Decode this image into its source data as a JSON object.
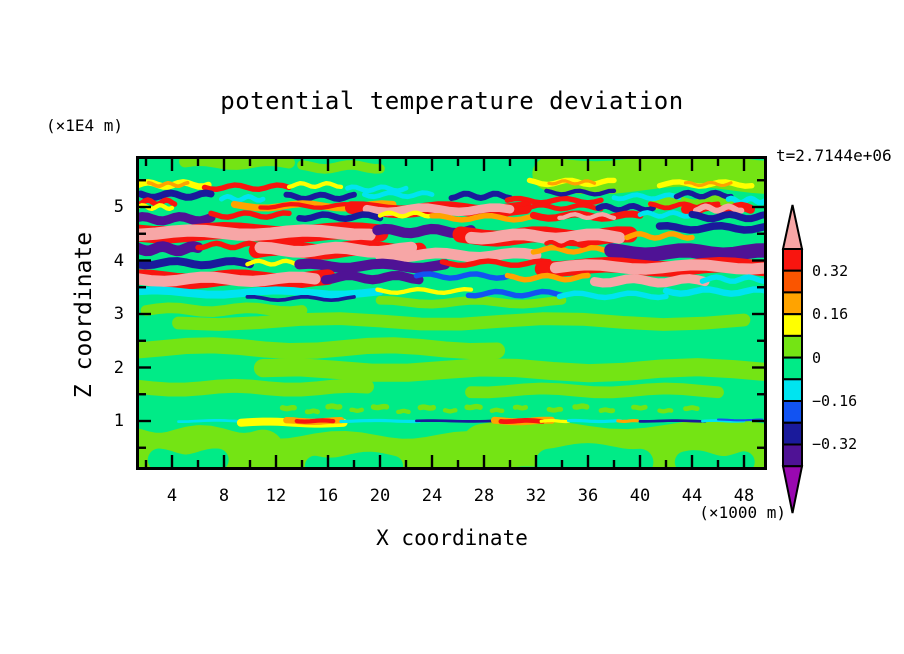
{
  "title": "potential temperature deviation",
  "time_label": "t=2.7144e+06",
  "axes": {
    "x": {
      "label": "X coordinate",
      "unit": "(×1000 m)",
      "major_ticks": [
        4,
        8,
        12,
        16,
        20,
        24,
        28,
        32,
        36,
        40,
        44,
        48
      ],
      "minor_ticks": [
        2,
        6,
        10,
        14,
        18,
        22,
        26,
        30,
        34,
        38,
        42,
        46
      ],
      "range": [
        1.2,
        49.8
      ]
    },
    "z": {
      "label": "Z coordinate",
      "unit": "(×1E4 m)",
      "major_ticks": [
        1,
        2,
        3,
        4,
        5
      ],
      "minor_ticks": [
        0.5,
        1.5,
        2.5,
        3.5,
        4.5,
        5.5
      ],
      "range": [
        0.08,
        5.95
      ]
    }
  },
  "colorbar": {
    "bands_top_to_bottom": [
      {
        "color": "rd",
        "min": 0.32,
        "max": 0.4
      },
      {
        "color": "or",
        "min": 0.24,
        "max": 0.32
      },
      {
        "color": "og",
        "min": 0.16,
        "max": 0.24
      },
      {
        "color": "yl",
        "min": 0.08,
        "max": 0.16
      },
      {
        "color": "ch",
        "min": 0,
        "max": 0.08
      },
      {
        "color": "sg",
        "min": -0.08,
        "max": 0
      },
      {
        "color": "cy",
        "min": -0.16,
        "max": -0.08
      },
      {
        "color": "bl",
        "min": -0.24,
        "max": -0.16
      },
      {
        "color": "nv",
        "min": -0.32,
        "max": -0.24
      },
      {
        "color": "ig",
        "min": -0.4,
        "max": -0.32
      }
    ],
    "over_arrow_color": "pk",
    "under_arrow_color": "pu",
    "labels": [
      {
        "text": "0.32",
        "at": 0.32
      },
      {
        "text": "0.16",
        "at": 0.16
      },
      {
        "text": "0",
        "at": 0
      },
      {
        "text": "−0.16",
        "at": -0.16
      },
      {
        "text": "−0.32",
        "at": -0.32
      }
    ]
  },
  "chart_data": {
    "type": "heatmap",
    "subtype": "filled_contour_2d",
    "title": "potential temperature deviation",
    "xlabel": "X coordinate (×1000 m)",
    "ylabel": "Z coordinate (×1E4 m)",
    "annotation": "t=2.7144e+06",
    "xlim": [
      1.2,
      49.8
    ],
    "ylim": [
      0.08,
      5.95
    ],
    "contour_level_edges": [
      -0.4,
      -0.32,
      -0.24,
      -0.16,
      -0.08,
      0,
      0.08,
      0.16,
      0.24,
      0.32,
      0.4
    ],
    "palette": {
      "pk": "#F7A6A6",
      "rd": "#F8150F",
      "or": "#FA5500",
      "og": "#FFA300",
      "yl": "#FFFF00",
      "ch": "#74E414",
      "sg": "#00EB87",
      "cy": "#00E4F0",
      "bl": "#1253F2",
      "nv": "#1A1A9B",
      "ig": "#4F1295",
      "pu": "#9908B0"
    },
    "background_value_color": "sg",
    "description": "Vertical x-z cross-section of potential temperature deviation. Strongly striated turbulent wave-breaking layer between z=3.3 and z=5.5 (pink/red/purple/blue streaks, |dev|>0.4 in places); near-zero green field elsewhere; thin perturbed interface line at z=1.0 with small warm (red/orange) and cold (blue/navy) pockets and a speckled mixing band just above it.",
    "field": {
      "coords": "x in axis units (x1000 m), z in axis units (x1E4 m); stripe = [x0, x1, z_center, thickness_z, colorKey, optional_wave_amp_px, optional_wave_cycles]",
      "stripes": [
        [
          33,
          50,
          5.62,
          0.62,
          "ch",
          4,
          1.2
        ],
        [
          41,
          47.5,
          5.08,
          0.2,
          "ch"
        ],
        [
          5,
          13,
          5.84,
          0.22,
          "ch",
          2,
          1.5
        ],
        [
          14,
          20,
          5.75,
          0.18,
          "ch",
          2,
          1.5
        ],
        [
          4.5,
          48,
          2.86,
          0.24,
          "ch",
          3,
          2.5
        ],
        [
          1.2,
          29,
          2.36,
          0.3,
          "ch",
          3,
          2
        ],
        [
          11,
          50,
          1.95,
          0.34,
          "ch",
          3,
          2.5
        ],
        [
          1.2,
          19,
          1.62,
          0.26,
          "ch",
          2,
          2
        ],
        [
          27,
          46,
          1.57,
          0.22,
          "ch",
          2,
          2
        ],
        [
          2,
          14,
          3.08,
          0.2,
          "ch",
          2,
          2
        ],
        [
          20,
          34,
          3.22,
          0.16,
          "ch",
          2,
          2
        ],
        [
          1.2,
          11,
          0.45,
          0.8,
          "ch",
          4,
          1.5
        ],
        [
          12,
          27,
          0.4,
          0.68,
          "ch",
          4,
          1.5
        ],
        [
          28,
          50,
          0.5,
          0.88,
          "ch",
          5,
          1.5
        ],
        [
          3,
          7.5,
          0.22,
          0.42,
          "sg",
          3,
          1
        ],
        [
          15,
          21,
          0.18,
          0.38,
          "sg",
          3,
          1
        ],
        [
          33,
          40,
          0.28,
          0.5,
          "sg",
          3,
          1
        ],
        [
          43.5,
          48,
          0.2,
          0.4,
          "sg",
          3,
          1
        ],
        [
          12.5,
          13.4,
          1.24,
          0.1,
          "ch",
          0.5,
          1
        ],
        [
          14.4,
          15.2,
          1.18,
          0.09,
          "ch",
          0.5,
          1
        ],
        [
          16,
          16.9,
          1.27,
          0.1,
          "ch",
          0.5,
          1
        ],
        [
          17.8,
          18.6,
          1.2,
          0.08,
          "ch",
          0.5,
          1
        ],
        [
          19.5,
          20.5,
          1.26,
          0.1,
          "ch",
          0.5,
          1
        ],
        [
          21.4,
          22.2,
          1.18,
          0.08,
          "ch",
          0.5,
          1
        ],
        [
          23.1,
          24.1,
          1.25,
          0.1,
          "ch",
          0.5,
          1
        ],
        [
          25,
          25.8,
          1.19,
          0.08,
          "ch",
          0.5,
          1
        ],
        [
          26.7,
          27.7,
          1.26,
          0.1,
          "ch",
          0.5,
          1
        ],
        [
          28.6,
          29.4,
          1.2,
          0.08,
          "ch",
          0.5,
          1
        ],
        [
          30.4,
          31.2,
          1.25,
          0.09,
          "ch",
          0.5,
          1
        ],
        [
          33,
          33.9,
          1.21,
          0.09,
          "ch",
          0.5,
          1
        ],
        [
          35,
          35.9,
          1.27,
          0.1,
          "ch",
          0.5,
          1
        ],
        [
          37,
          37.9,
          1.2,
          0.09,
          "ch",
          0.5,
          1
        ],
        [
          39.5,
          40.4,
          1.25,
          0.09,
          "ch",
          0.5,
          1
        ],
        [
          41.5,
          42.4,
          1.19,
          0.08,
          "ch",
          0.5,
          1
        ],
        [
          43.5,
          44.4,
          1.24,
          0.09,
          "ch",
          0.5,
          1
        ],
        [
          1.4,
          6.8,
          5.42,
          0.12,
          "yl"
        ],
        [
          2.2,
          5.2,
          5.42,
          0.07,
          "og"
        ],
        [
          6.5,
          13,
          5.37,
          0.1,
          "rd"
        ],
        [
          13,
          17,
          5.41,
          0.08,
          "yl"
        ],
        [
          17.5,
          22,
          5.34,
          0.09,
          "cy"
        ],
        [
          31.5,
          38,
          5.46,
          0.1,
          "yl"
        ],
        [
          33,
          36.5,
          5.46,
          0.06,
          "og"
        ],
        [
          41.5,
          48.6,
          5.43,
          0.1,
          "yl"
        ],
        [
          43.5,
          47,
          5.43,
          0.06,
          "og"
        ],
        [
          1.6,
          7,
          5.22,
          0.13,
          "nv"
        ],
        [
          1.3,
          4.2,
          5.09,
          0.1,
          "rd"
        ],
        [
          7.8,
          11,
          5.16,
          0.09,
          "cy"
        ],
        [
          12.8,
          18,
          5.19,
          0.11,
          "nv"
        ],
        [
          18.8,
          24,
          5.23,
          0.09,
          "cy"
        ],
        [
          25.5,
          30,
          5.21,
          0.11,
          "nv"
        ],
        [
          29.8,
          37,
          5.12,
          0.1,
          "rd"
        ],
        [
          32.8,
          38,
          5.27,
          0.08,
          "nv"
        ],
        [
          38,
          43,
          5.19,
          0.09,
          "cy"
        ],
        [
          42.8,
          47,
          5.23,
          0.1,
          "nv"
        ],
        [
          46.8,
          49.8,
          5.12,
          0.1,
          "cy"
        ],
        [
          8.8,
          21,
          5.02,
          0.13,
          "og"
        ],
        [
          10.8,
          19,
          5.02,
          0.08,
          "rd"
        ],
        [
          1.3,
          4,
          5.0,
          0.08,
          "yl"
        ],
        [
          17.8,
          31.2,
          4.95,
          0.24,
          "rd"
        ],
        [
          19,
          30,
          4.95,
          0.16,
          "pk"
        ],
        [
          30.8,
          37,
          5.0,
          0.09,
          "rd"
        ],
        [
          36.8,
          41,
          4.98,
          0.11,
          "nv"
        ],
        [
          40.8,
          46,
          5.02,
          0.09,
          "rd"
        ],
        [
          43.5,
          48.5,
          4.97,
          0.17,
          "rd"
        ],
        [
          44.3,
          47.8,
          4.97,
          0.11,
          "pk"
        ],
        [
          1.3,
          7,
          4.78,
          0.17,
          "ig"
        ],
        [
          7,
          13,
          4.85,
          0.1,
          "rd"
        ],
        [
          13.8,
          20,
          4.82,
          0.12,
          "nv"
        ],
        [
          20,
          24,
          4.86,
          0.08,
          "yl"
        ],
        [
          24,
          32,
          4.8,
          0.1,
          "og"
        ],
        [
          31.8,
          40,
          4.83,
          0.13,
          "rd"
        ],
        [
          33.8,
          38,
          4.83,
          0.08,
          "pk"
        ],
        [
          40,
          44,
          4.86,
          0.09,
          "cy"
        ],
        [
          44,
          49.8,
          4.82,
          0.13,
          "nv"
        ],
        [
          1.3,
          20,
          4.52,
          0.32,
          "rd"
        ],
        [
          1.5,
          19.2,
          4.52,
          0.23,
          "pk"
        ],
        [
          19.8,
          27,
          4.55,
          0.19,
          "ig"
        ],
        [
          26.2,
          39.2,
          4.45,
          0.3,
          "rd"
        ],
        [
          27,
          38.4,
          4.45,
          0.22,
          "pk"
        ],
        [
          39,
          44,
          4.46,
          0.1,
          "og"
        ],
        [
          41.5,
          49.8,
          4.61,
          0.14,
          "nv"
        ],
        [
          1.3,
          6,
          4.22,
          0.2,
          "ig"
        ],
        [
          6,
          11,
          4.28,
          0.1,
          "rd"
        ],
        [
          10.5,
          23,
          4.2,
          0.29,
          "rd"
        ],
        [
          10.8,
          22.4,
          4.2,
          0.22,
          "pk"
        ],
        [
          20,
          32,
          4.1,
          0.2,
          "pk"
        ],
        [
          31.8,
          38,
          4.2,
          0.1,
          "og"
        ],
        [
          32.8,
          36,
          4.31,
          0.08,
          "rd"
        ],
        [
          37.8,
          49.8,
          4.15,
          0.27,
          "ig"
        ],
        [
          1.3,
          10,
          3.95,
          0.15,
          "nv"
        ],
        [
          9.8,
          14,
          3.96,
          0.08,
          "yl"
        ],
        [
          13.8,
          25,
          3.9,
          0.19,
          "ig"
        ],
        [
          24.8,
          33,
          3.95,
          0.1,
          "rd"
        ],
        [
          32.5,
          49.8,
          3.88,
          0.29,
          "rd"
        ],
        [
          33.5,
          49.8,
          3.88,
          0.21,
          "pk"
        ],
        [
          1.3,
          16,
          3.65,
          0.29,
          "rd"
        ],
        [
          1.4,
          15,
          3.65,
          0.21,
          "pk"
        ],
        [
          15.8,
          23,
          3.68,
          0.17,
          "ig"
        ],
        [
          22.8,
          30,
          3.71,
          0.1,
          "bl"
        ],
        [
          29.8,
          36,
          3.68,
          0.1,
          "og"
        ],
        [
          36.5,
          45,
          3.62,
          0.17,
          "pk"
        ],
        [
          44.8,
          49.8,
          3.65,
          0.1,
          "cy"
        ],
        [
          1.3,
          20,
          3.4,
          0.15,
          "cy"
        ],
        [
          19.8,
          27,
          3.43,
          0.08,
          "yl"
        ],
        [
          26.8,
          34,
          3.38,
          0.1,
          "bl"
        ],
        [
          33.8,
          42,
          3.35,
          0.1,
          "cy"
        ],
        [
          9.8,
          18,
          3.29,
          0.07,
          "nv"
        ],
        [
          42,
          49.8,
          3.42,
          0.12,
          "cy"
        ],
        [
          4.5,
          10,
          1.0,
          0.05,
          "cy",
          0.6,
          1
        ],
        [
          9.3,
          17.2,
          0.97,
          0.15,
          "yl",
          1,
          1
        ],
        [
          12.8,
          17,
          1.0,
          0.12,
          "og",
          0.8,
          1
        ],
        [
          13.6,
          16.4,
          1.0,
          0.08,
          "rd",
          0.6,
          1
        ],
        [
          17,
          23,
          1.0,
          0.06,
          "cy",
          0.5,
          1
        ],
        [
          22.8,
          29,
          1.0,
          0.05,
          "nv",
          0.4,
          1
        ],
        [
          28.8,
          33.2,
          1.0,
          0.13,
          "og",
          0.8,
          1
        ],
        [
          29.3,
          32.5,
          1.0,
          0.09,
          "rd",
          0.6,
          1
        ],
        [
          32.4,
          34.5,
          1.0,
          0.06,
          "yl",
          0.5,
          1
        ],
        [
          34.5,
          38.5,
          1.0,
          0.06,
          "cy",
          0.5,
          1
        ],
        [
          38.3,
          39.8,
          1.0,
          0.06,
          "og",
          0.4,
          1
        ],
        [
          40,
          45,
          1.0,
          0.05,
          "nv",
          0.4,
          1
        ],
        [
          44.8,
          48,
          1.0,
          0.05,
          "cy",
          0.4,
          1
        ],
        [
          46,
          49.4,
          1.02,
          0.04,
          "bl",
          0.4,
          1
        ]
      ]
    }
  }
}
